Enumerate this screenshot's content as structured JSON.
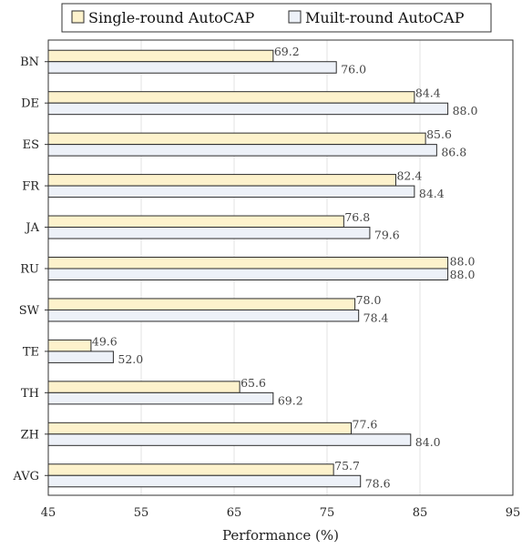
{
  "chart_data": {
    "type": "bar",
    "orientation": "horizontal",
    "categories": [
      "BN",
      "DE",
      "ES",
      "FR",
      "JA",
      "RU",
      "SW",
      "TE",
      "TH",
      "ZH",
      "AVG"
    ],
    "series": [
      {
        "name": "Single-round AutoCAP",
        "color": "#fdf2cc",
        "labels": [
          "69.2",
          "84.4",
          "85.6",
          "82.4",
          "76.8",
          "88.0",
          "78.0",
          "49.6",
          "65.6",
          "77.6",
          "75.7"
        ],
        "values": [
          69.2,
          84.4,
          85.6,
          82.4,
          76.8,
          88.0,
          78.0,
          49.6,
          65.6,
          77.6,
          75.7
        ]
      },
      {
        "name": "Muilt-round AutoCAP",
        "color": "#edf1f8",
        "labels": [
          "76.0",
          "88.0",
          "86.8",
          "84.4",
          "79.6",
          "88.0",
          "78.4",
          "52.0",
          "69.2",
          "84.0",
          "78.6"
        ],
        "values": [
          76.0,
          88.0,
          86.8,
          84.4,
          79.6,
          88.0,
          78.4,
          52.0,
          69.2,
          84.0,
          78.6
        ]
      }
    ],
    "xlabel": "Performance (%)",
    "ylabel": "",
    "xlim": [
      45,
      95
    ],
    "xticks": [
      "45",
      "55",
      "65",
      "75",
      "85",
      "95"
    ],
    "grid": "vertical",
    "legend": "top"
  }
}
